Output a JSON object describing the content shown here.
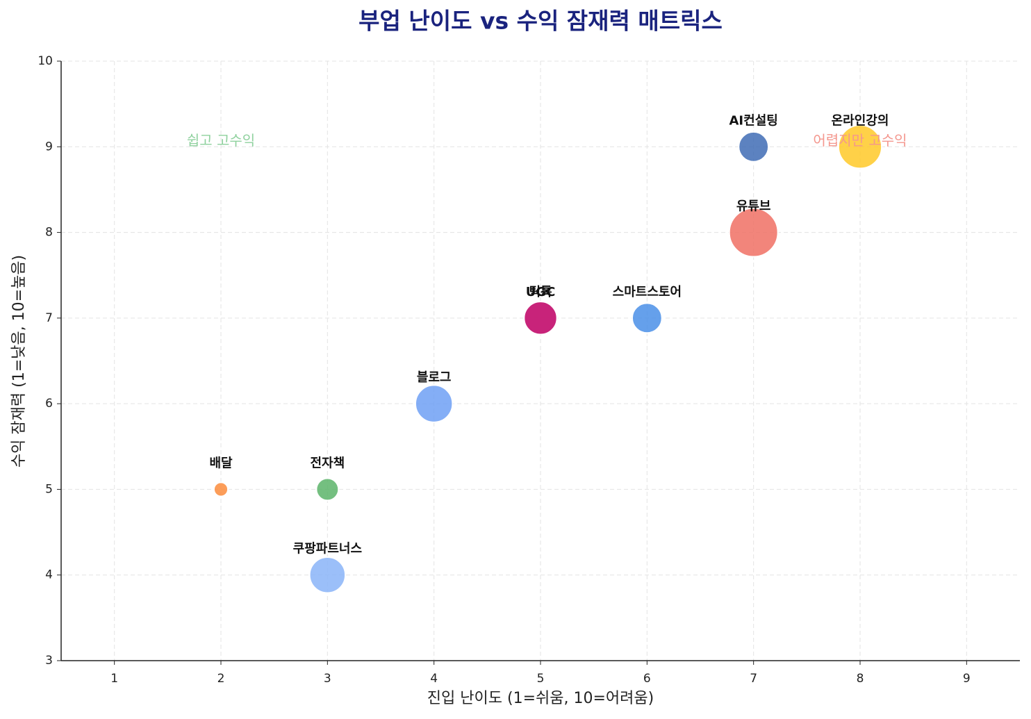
{
  "chart_data": {
    "type": "scatter",
    "title": "부업 난이도 vs 수익 잠재력 매트릭스",
    "xlabel": "진입 난이도 (1=쉬움, 10=어려움)",
    "ylabel": "수익 잠재력 (1=낮음, 10=높음)",
    "labels": [
      "배달",
      "전자책",
      "쿠팡파트너스",
      "블로그",
      "UGC",
      "틱톡",
      "스마트스토어",
      "유튜브",
      "AI컨설팅",
      "온라인강의"
    ],
    "x": [
      2,
      3,
      3,
      4,
      5,
      5,
      6,
      7,
      7,
      8
    ],
    "values": [
      5,
      5,
      4,
      6,
      7,
      7,
      7,
      8,
      9,
      9
    ],
    "sizes": [
      200,
      500,
      1300,
      1400,
      1100,
      1100,
      900,
      2400,
      900,
      1900
    ],
    "colors": [
      "#fb8c3c",
      "#5cb46a",
      "#8ab4f8",
      "#6fa0f5",
      "#d62f7e",
      "#c41c76",
      "#4a8fe7",
      "#f07064",
      "#3f6cb5",
      "#ffc928"
    ],
    "xlim": [
      0.5,
      9.5
    ],
    "xticks": [
      1,
      2,
      3,
      4,
      5,
      6,
      7,
      8,
      9
    ],
    "ylim": [
      3,
      10
    ],
    "yticks": [
      3,
      4,
      5,
      6,
      7,
      8,
      9,
      10
    ],
    "grid": true,
    "annotations": [
      {
        "text": "쉽고 고수익",
        "x": 2,
        "y": 9,
        "color": "#8fd19e"
      },
      {
        "text": "어렵지만 고수익",
        "x": 8,
        "y": 9,
        "color": "#f4978e"
      }
    ]
  }
}
